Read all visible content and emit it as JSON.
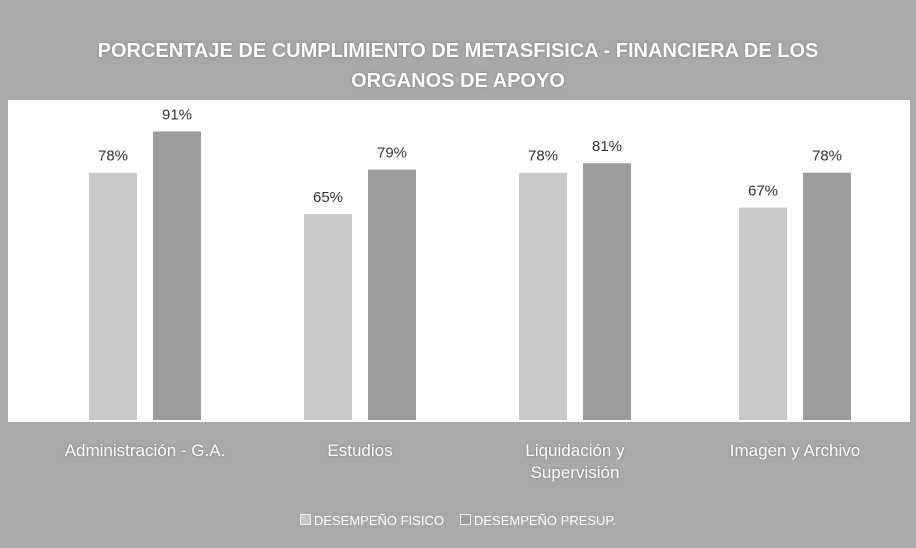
{
  "chart_data": {
    "type": "bar",
    "title": "PORCENTAJE DE CUMPLIMIENTO DE METASFISICA - FINANCIERA DE LOS ORGANOS DE APOYO",
    "categories": [
      "Administración - G.A.",
      "Estudios",
      "Liquidación y Supervisión",
      "Imagen y Archivo"
    ],
    "series": [
      {
        "name": "DESEMPEÑO FISICO",
        "color": "#c9c9c9",
        "values": [
          78,
          65,
          78,
          67
        ],
        "value_labels": [
          "78%",
          "65%",
          "78%",
          "67%"
        ]
      },
      {
        "name": "DESEMPEÑO PRESUP.",
        "color": "#9c9c9c",
        "values": [
          91,
          79,
          81,
          78
        ],
        "value_labels": [
          "91%",
          "79%",
          "81%",
          "78%"
        ]
      }
    ],
    "legend": "bottom"
  }
}
